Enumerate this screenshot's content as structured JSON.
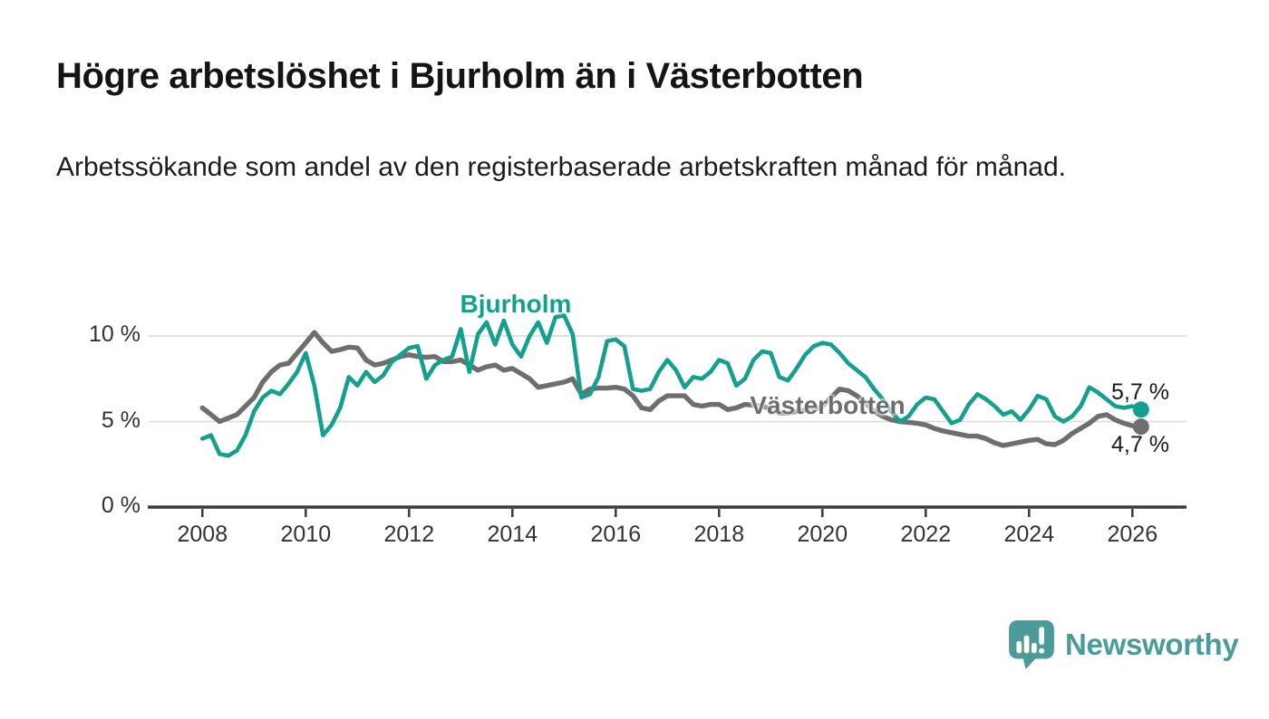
{
  "title": "Högre arbetslöshet i Bjurholm än i Västerbotten",
  "subtitle": "Arbetssökande som andel av den registerbaserade arbetskraften månad för månad.",
  "colors": {
    "bjurholm_teal": "#14a08f",
    "vasterbotten_gray": "#6e6e6e",
    "grid": "#d9d9d9",
    "axis": "#3b3b3b",
    "tick_text": "#333333",
    "title_text": "#141414",
    "logo_teal": "#4a9b99"
  },
  "chart_data": {
    "type": "line",
    "x_start_year": 2008,
    "x_step_years": 0.166667,
    "xlabel": "",
    "ylabel": "",
    "ylim": [
      0,
      11.5
    ],
    "grid": true,
    "legend_position": "inline-labels",
    "x_ticks": [
      2008,
      2010,
      2012,
      2014,
      2016,
      2018,
      2020,
      2022,
      2024,
      2026
    ],
    "y_ticks": [
      {
        "value": 0,
        "label": "0 %"
      },
      {
        "value": 5,
        "label": "5 %"
      },
      {
        "value": 10,
        "label": "10 %"
      }
    ],
    "series": [
      {
        "name": "Bjurholm",
        "color": "#14a08f",
        "end_label": "5,7 %",
        "end_value": 5.7,
        "values": [
          4.0,
          4.2,
          3.1,
          3.0,
          3.3,
          4.2,
          5.6,
          6.4,
          6.8,
          6.6,
          7.2,
          7.9,
          9.0,
          7.1,
          4.2,
          4.8,
          5.8,
          7.6,
          7.1,
          7.9,
          7.3,
          7.7,
          8.5,
          8.9,
          9.3,
          9.4,
          7.5,
          8.3,
          8.6,
          8.8,
          10.4,
          7.9,
          10.1,
          10.8,
          9.5,
          10.9,
          9.5,
          8.8,
          10.0,
          10.8,
          9.6,
          11.1,
          11.2,
          10.1,
          6.4,
          6.6,
          7.6,
          9.7,
          9.8,
          9.4,
          6.9,
          6.8,
          6.9,
          7.9,
          8.6,
          8.0,
          7.0,
          7.6,
          7.5,
          7.9,
          8.6,
          8.4,
          7.1,
          7.5,
          8.6,
          9.1,
          9.0,
          7.6,
          7.4,
          8.1,
          8.9,
          9.4,
          9.6,
          9.5,
          9.0,
          8.4,
          8.0,
          7.6,
          6.9,
          6.3,
          5.6,
          5.0,
          5.3,
          6.0,
          6.4,
          6.3,
          5.6,
          4.9,
          5.1,
          6.0,
          6.6,
          6.3,
          5.9,
          5.4,
          5.6,
          5.1,
          5.7,
          6.5,
          6.3,
          5.3,
          5.0,
          5.3,
          5.9,
          7.0,
          6.7,
          6.3,
          5.9,
          5.8,
          5.9,
          5.7
        ]
      },
      {
        "name": "Västerbotten",
        "color": "#6e6e6e",
        "end_label": "4,7 %",
        "end_value": 4.7,
        "values": [
          5.8,
          5.4,
          5.0,
          5.2,
          5.4,
          5.9,
          6.4,
          7.3,
          7.9,
          8.3,
          8.4,
          9.0,
          9.6,
          10.2,
          9.6,
          9.1,
          9.2,
          9.35,
          9.3,
          8.6,
          8.3,
          8.4,
          8.6,
          8.8,
          8.9,
          8.8,
          8.75,
          8.8,
          8.5,
          8.5,
          8.6,
          8.3,
          8.0,
          8.2,
          8.3,
          8.0,
          8.1,
          7.8,
          7.5,
          7.0,
          7.1,
          7.2,
          7.3,
          7.5,
          6.6,
          6.9,
          6.95,
          6.95,
          7.0,
          6.9,
          6.5,
          5.8,
          5.7,
          6.2,
          6.5,
          6.5,
          6.5,
          6.0,
          5.9,
          6.0,
          6.0,
          5.7,
          5.8,
          6.0,
          5.95,
          5.9,
          5.75,
          5.5,
          5.5,
          5.6,
          5.65,
          5.7,
          5.9,
          6.4,
          6.9,
          6.8,
          6.5,
          6.1,
          5.6,
          5.3,
          5.1,
          5.0,
          4.95,
          4.9,
          4.8,
          4.6,
          4.45,
          4.35,
          4.25,
          4.15,
          4.15,
          4.0,
          3.75,
          3.6,
          3.7,
          3.8,
          3.9,
          3.95,
          3.7,
          3.65,
          3.9,
          4.3,
          4.6,
          4.9,
          5.3,
          5.4,
          5.1,
          4.9,
          4.75,
          4.7
        ]
      }
    ]
  },
  "branding": {
    "logo_text": "Newsworthy",
    "logo_icon": "speech-bubble-bar-chart-icon"
  }
}
